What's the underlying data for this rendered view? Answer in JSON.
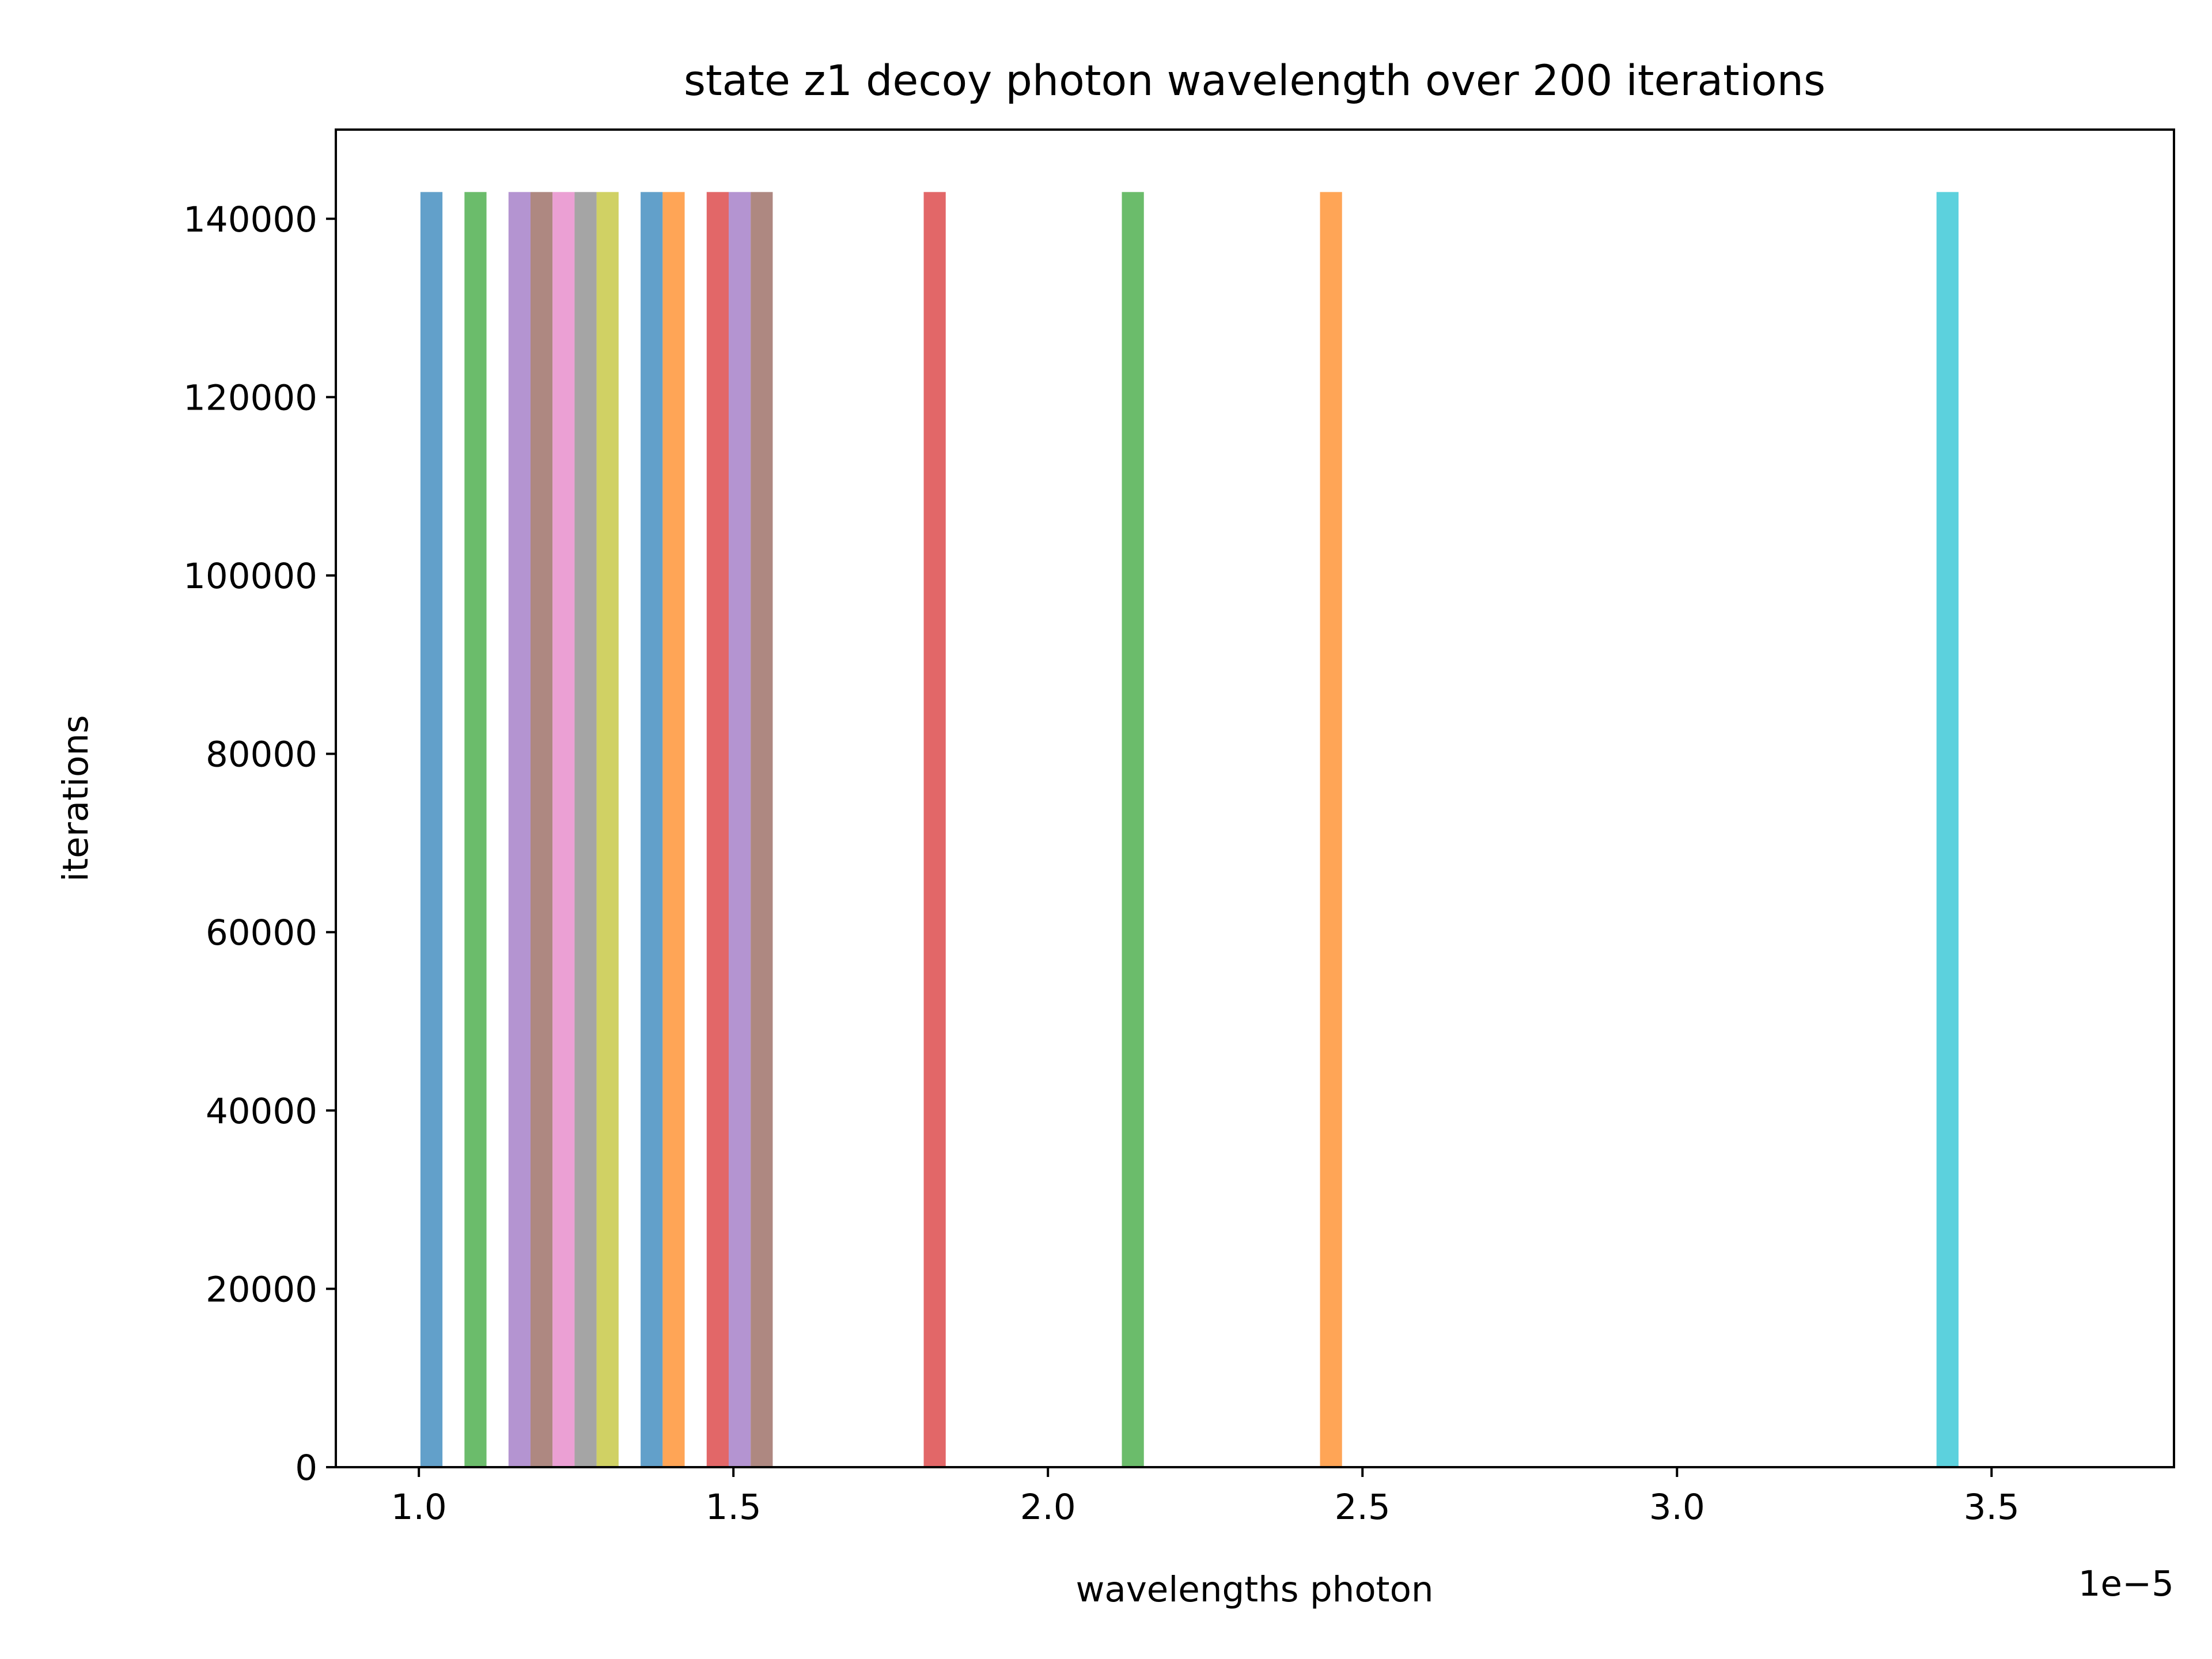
{
  "chart_data": {
    "type": "bar",
    "title": "state z1 decoy photon wavelength over 200 iterations",
    "xlabel": "wavelengths photon",
    "ylabel": "iterations",
    "x_offset_label": "1e−5",
    "x_scale": 1e-05,
    "xlim": [
      0.868,
      3.79
    ],
    "ylim": [
      0,
      150000
    ],
    "x_ticks": [
      {
        "value": 1.0,
        "label": "1.0"
      },
      {
        "value": 1.5,
        "label": "1.5"
      },
      {
        "value": 2.0,
        "label": "2.0"
      },
      {
        "value": 2.5,
        "label": "2.5"
      },
      {
        "value": 3.0,
        "label": "3.0"
      },
      {
        "value": 3.5,
        "label": "3.5"
      }
    ],
    "y_ticks": [
      {
        "value": 0,
        "label": "0"
      },
      {
        "value": 20000,
        "label": "20000"
      },
      {
        "value": 40000,
        "label": "40000"
      },
      {
        "value": 60000,
        "label": "60000"
      },
      {
        "value": 80000,
        "label": "80000"
      },
      {
        "value": 100000,
        "label": "100000"
      },
      {
        "value": 120000,
        "label": "120000"
      },
      {
        "value": 140000,
        "label": "140000"
      }
    ],
    "grid": false,
    "legend": "none",
    "bar_width": 0.035,
    "bars": [
      {
        "x": 1.02,
        "value": 143000,
        "color": "#1f77b4"
      },
      {
        "x": 1.09,
        "value": 143000,
        "color": "#2ca02c"
      },
      {
        "x": 1.16,
        "value": 143000,
        "color": "#9467bd"
      },
      {
        "x": 1.195,
        "value": 143000,
        "color": "#8c564b"
      },
      {
        "x": 1.23,
        "value": 143000,
        "color": "#e377c2"
      },
      {
        "x": 1.265,
        "value": 143000,
        "color": "#7f7f7f"
      },
      {
        "x": 1.3,
        "value": 143000,
        "color": "#bcbd22"
      },
      {
        "x": 1.37,
        "value": 143000,
        "color": "#1f77b4"
      },
      {
        "x": 1.405,
        "value": 143000,
        "color": "#ff7f0e"
      },
      {
        "x": 1.475,
        "value": 143000,
        "color": "#d62728"
      },
      {
        "x": 1.51,
        "value": 143000,
        "color": "#9467bd"
      },
      {
        "x": 1.545,
        "value": 143000,
        "color": "#8c564b"
      },
      {
        "x": 1.82,
        "value": 143000,
        "color": "#d62728"
      },
      {
        "x": 2.135,
        "value": 143000,
        "color": "#2ca02c"
      },
      {
        "x": 2.45,
        "value": 143000,
        "color": "#ff7f0e"
      },
      {
        "x": 3.43,
        "value": 143000,
        "color": "#17becf"
      }
    ],
    "bar_opacity": 0.7
  }
}
